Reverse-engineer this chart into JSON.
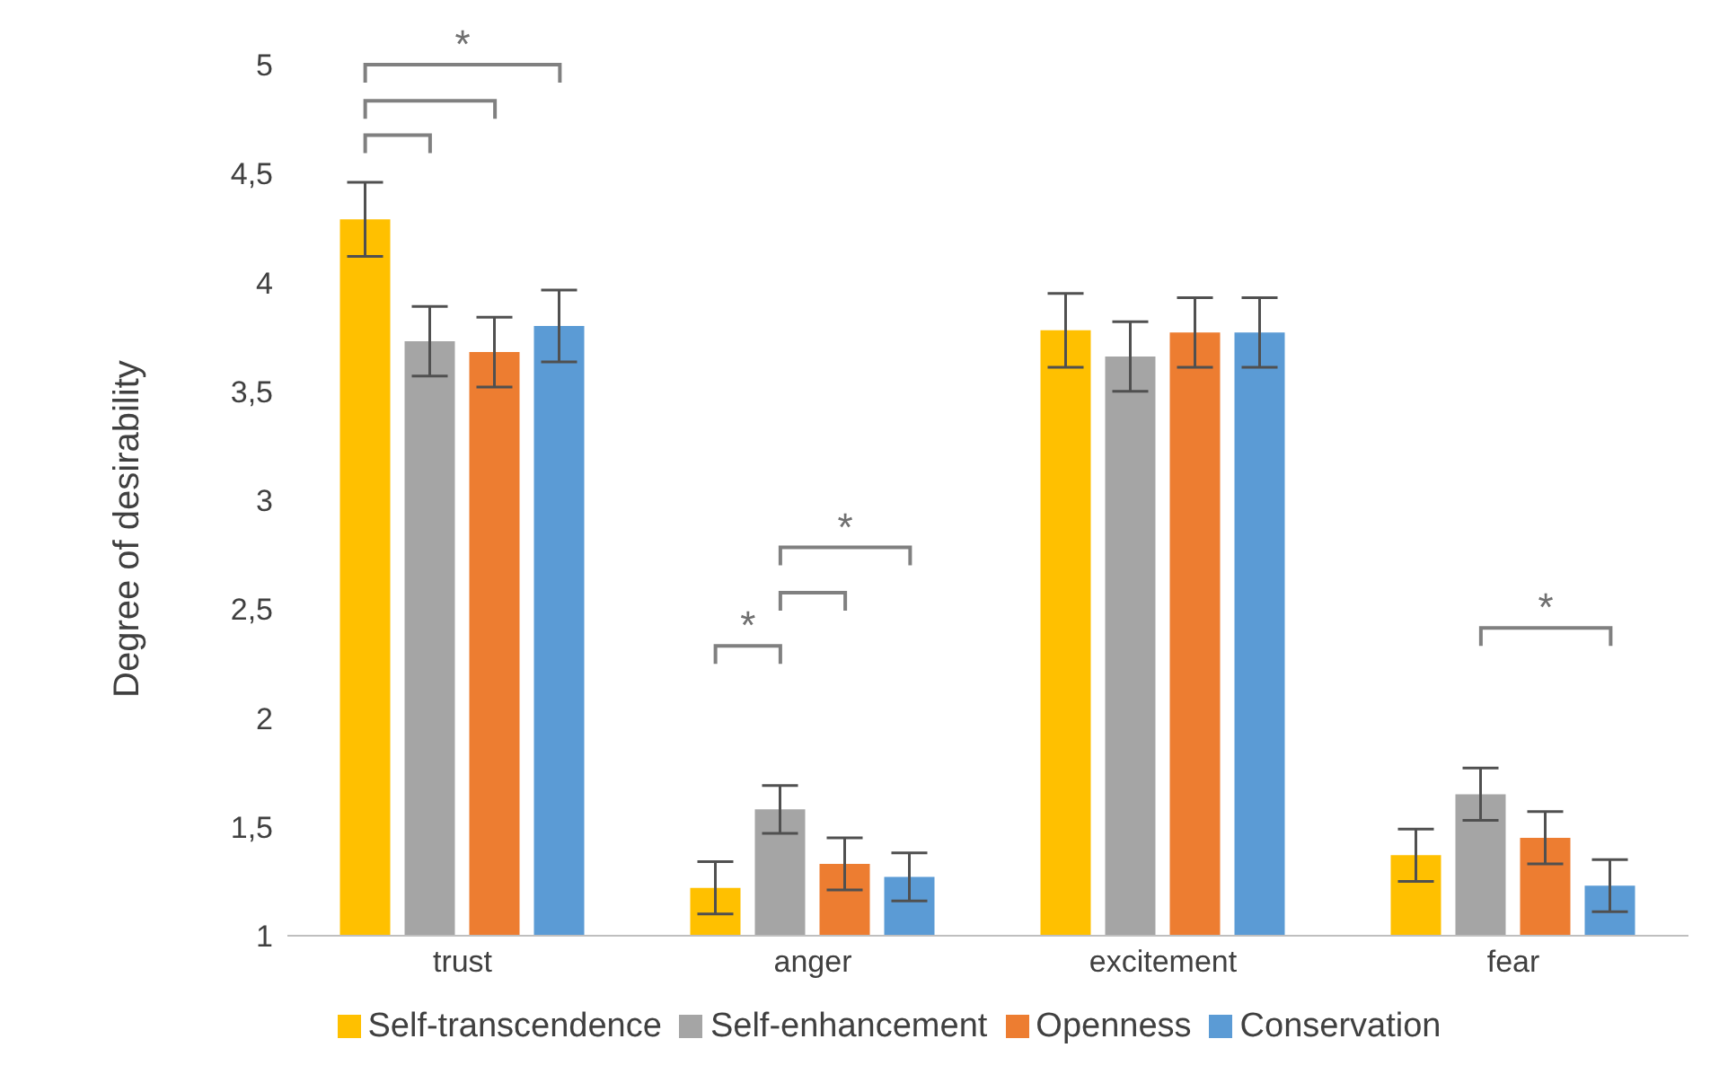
{
  "chart_data": {
    "type": "bar",
    "ylabel": "Degree of desirability",
    "categories": [
      "trust",
      "anger",
      "excitement",
      "fear"
    ],
    "ylim": [
      1,
      5
    ],
    "yticks": [
      1,
      {
        "value": 1.5,
        "label": "1,5"
      },
      2,
      {
        "value": 2.5,
        "label": "2,5"
      },
      3,
      {
        "value": 3.5,
        "label": "3,5"
      },
      4,
      {
        "value": 4.5,
        "label": "4,5"
      },
      5
    ],
    "legend": "bottom",
    "series": [
      {
        "name": "Self-transcendence",
        "color": "#ffc000",
        "values": [
          4.29,
          1.22,
          3.78,
          1.37
        ],
        "errors": [
          0.17,
          0.12,
          0.17,
          0.12
        ]
      },
      {
        "name": "Self-enhancement",
        "color": "#a5a5a5",
        "values": [
          3.73,
          1.58,
          3.66,
          1.65
        ],
        "errors": [
          0.16,
          0.11,
          0.16,
          0.12
        ]
      },
      {
        "name": "Openness",
        "color": "#ed7d31",
        "values": [
          3.68,
          1.33,
          3.77,
          1.45
        ],
        "errors": [
          0.16,
          0.12,
          0.16,
          0.12
        ]
      },
      {
        "name": "Conservation",
        "color": "#5b9bd5",
        "values": [
          3.8,
          1.27,
          3.77,
          1.23
        ],
        "errors": [
          0.165,
          0.11,
          0.16,
          0.12
        ]
      }
    ],
    "annotations": [
      "*",
      "*",
      "*",
      "*"
    ]
  }
}
